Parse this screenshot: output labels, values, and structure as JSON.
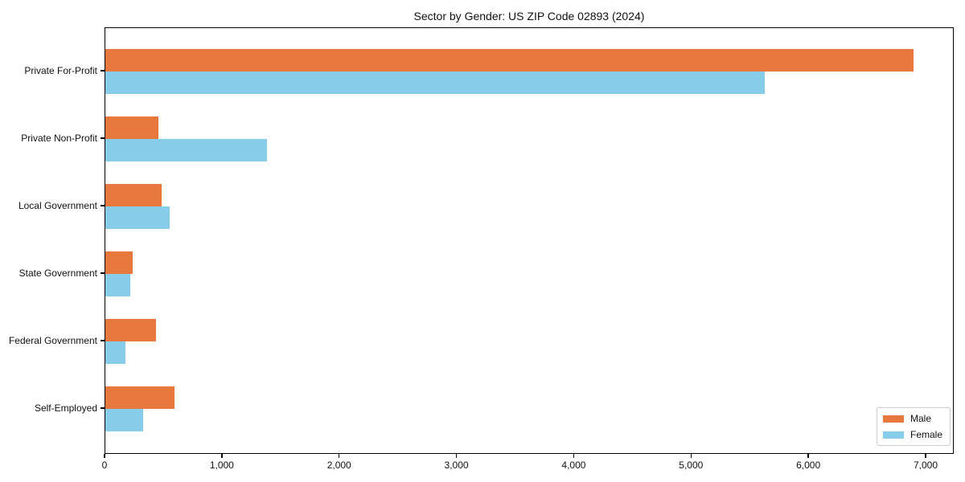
{
  "chart_data": {
    "type": "bar",
    "orientation": "horizontal",
    "title": "Sector by Gender: US ZIP Code 02893 (2024)",
    "categories": [
      "Private For-Profit",
      "Private Non-Profit",
      "Local Government",
      "State Government",
      "Federal Government",
      "Self-Employed"
    ],
    "series": [
      {
        "name": "Male",
        "color": "#e8793e",
        "values": [
          6890,
          450,
          480,
          235,
          430,
          590
        ]
      },
      {
        "name": "Female",
        "color": "#87cdea",
        "values": [
          5620,
          1375,
          550,
          210,
          170,
          320
        ]
      }
    ],
    "xlim": [
      0,
      7240
    ],
    "xticks": [
      0,
      1000,
      2000,
      3000,
      4000,
      5000,
      6000,
      7000
    ],
    "xtick_labels": [
      "0",
      "1,000",
      "2,000",
      "3,000",
      "4,000",
      "5,000",
      "6,000",
      "7,000"
    ],
    "xlabel": "",
    "ylabel": "",
    "grid": false,
    "legend_position": "lower right"
  }
}
